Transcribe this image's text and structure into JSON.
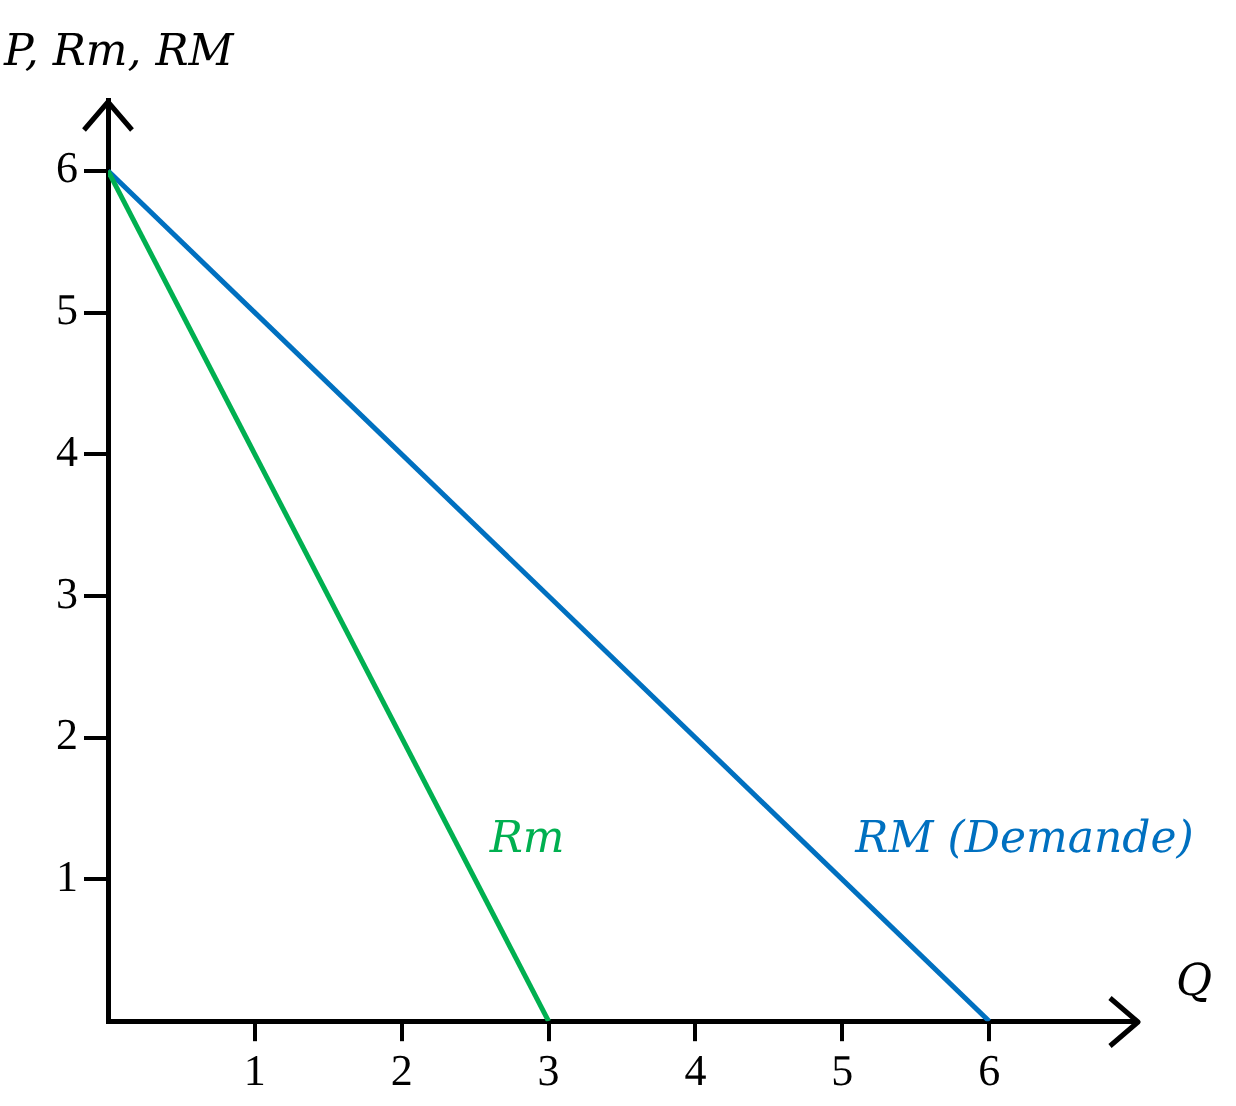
{
  "chart_data": {
    "type": "line",
    "xlabel": "Q",
    "ylabel": "P, Rm, RM",
    "xlim": [
      0,
      7
    ],
    "ylim": [
      0,
      6.5
    ],
    "xticks": [
      1,
      2,
      3,
      4,
      5,
      6
    ],
    "yticks": [
      1,
      2,
      3,
      4,
      5,
      6
    ],
    "grid": false,
    "legend": false,
    "marker": "none",
    "line_style": "solid",
    "series": [
      {
        "name": "Rm",
        "color": "#00b050",
        "x": [
          0,
          3
        ],
        "values": [
          6,
          0
        ]
      },
      {
        "name": "RM (Demande)",
        "color": "#0070c0",
        "x": [
          0,
          6
        ],
        "values": [
          6,
          0
        ]
      }
    ]
  }
}
